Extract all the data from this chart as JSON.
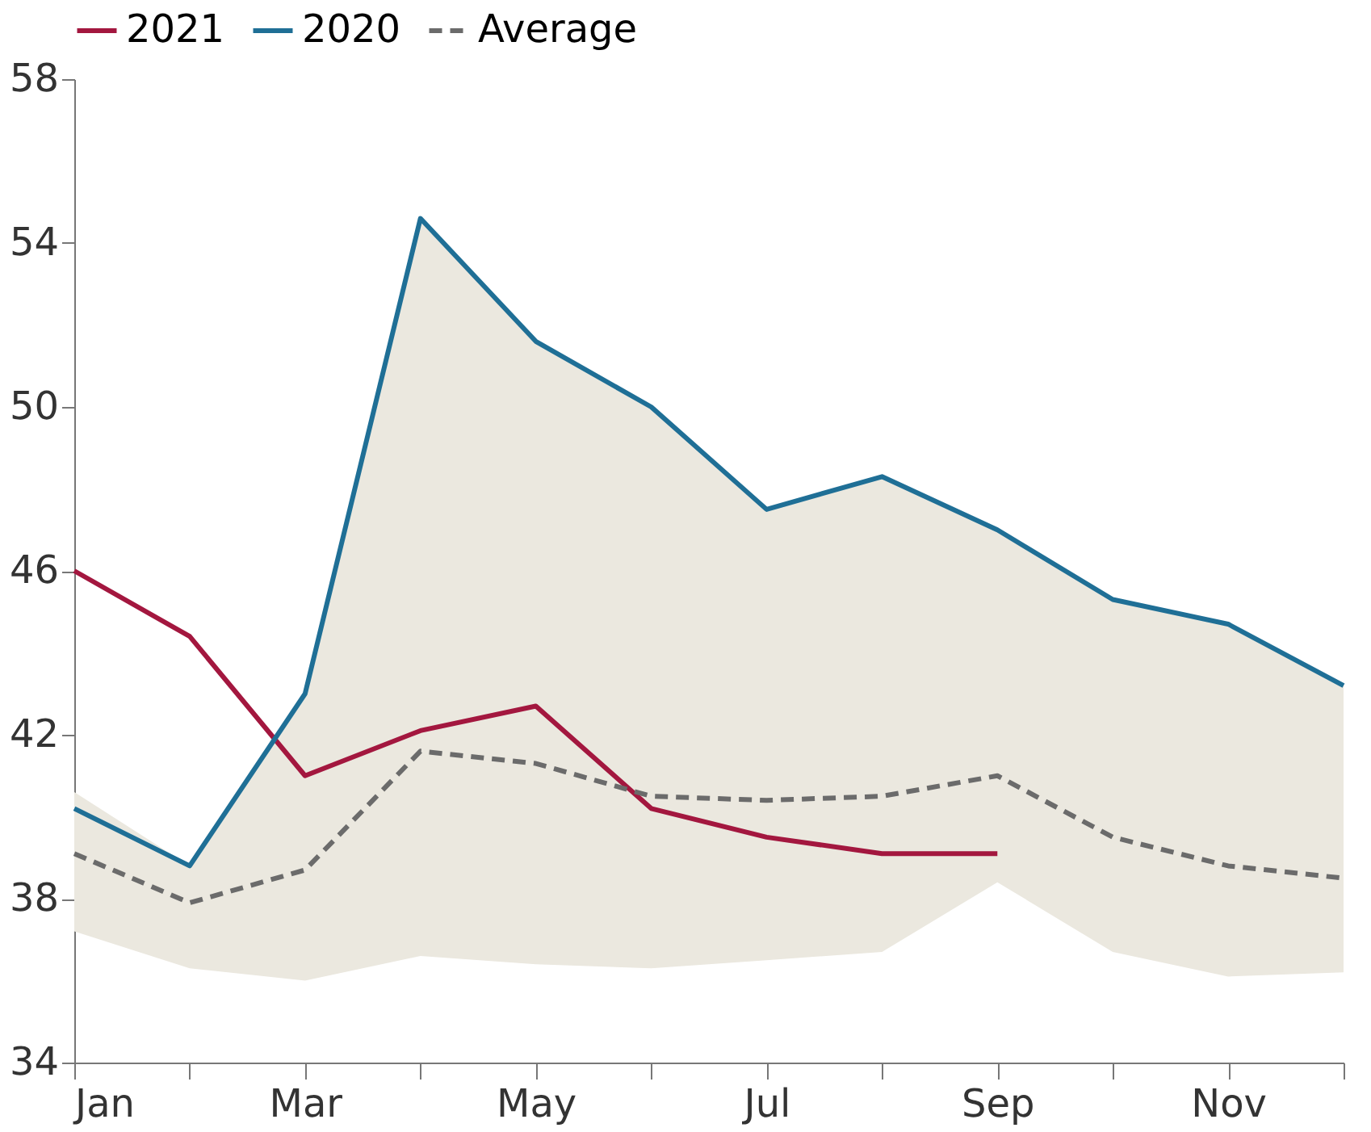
{
  "chart_data": {
    "type": "line",
    "categories": [
      "Jan",
      null,
      "Mar",
      null,
      "May",
      null,
      "Jul",
      null,
      "Sep",
      null,
      "Nov",
      null
    ],
    "series": [
      {
        "name": "2021",
        "color": "#a3173f",
        "line_style": "solid",
        "values": [
          46.0,
          44.4,
          41.0,
          42.1,
          42.7,
          40.2,
          39.5,
          39.1,
          39.1,
          null,
          null,
          null
        ]
      },
      {
        "name": "2020",
        "color": "#1f6f96",
        "line_style": "solid",
        "values": [
          40.2,
          38.8,
          43.0,
          54.6,
          51.6,
          50.0,
          47.5,
          48.3,
          47.0,
          45.3,
          44.7,
          43.2
        ]
      },
      {
        "name": "Average",
        "color": "#6b6b6b",
        "line_style": "dashed",
        "values": [
          39.1,
          37.9,
          38.7,
          41.6,
          41.3,
          40.5,
          40.4,
          40.5,
          41.0,
          39.5,
          38.8,
          38.5
        ],
        "lower": [
          37.2,
          36.3,
          36.0,
          36.6,
          36.4,
          36.3,
          36.5,
          36.7,
          38.4,
          36.7,
          36.1,
          36.2
        ],
        "upper": [
          40.6,
          38.8,
          43.0,
          54.6,
          51.6,
          50.0,
          47.5,
          48.3,
          47.0,
          45.3,
          44.7,
          43.2
        ]
      }
    ],
    "ylim": [
      34,
      58
    ],
    "yticks": [
      34,
      38,
      42,
      46,
      50,
      54,
      58
    ],
    "grid": false,
    "legend": "top"
  }
}
